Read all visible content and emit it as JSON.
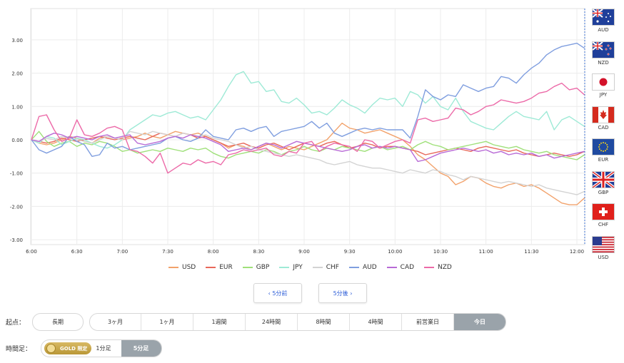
{
  "chart_data": {
    "type": "line",
    "x": [
      "6:00",
      "6:05",
      "6:10",
      "6:15",
      "6:20",
      "6:25",
      "6:30",
      "6:35",
      "6:40",
      "6:45",
      "6:50",
      "6:55",
      "7:00",
      "7:05",
      "7:10",
      "7:15",
      "7:20",
      "7:25",
      "7:30",
      "7:35",
      "7:40",
      "7:45",
      "7:50",
      "7:55",
      "8:00",
      "8:05",
      "8:10",
      "8:15",
      "8:20",
      "8:25",
      "8:30",
      "8:35",
      "8:40",
      "8:45",
      "8:50",
      "8:55",
      "9:00",
      "9:05",
      "9:10",
      "9:15",
      "9:20",
      "9:25",
      "9:30",
      "9:35",
      "9:40",
      "9:45",
      "9:50",
      "9:55",
      "10:00",
      "10:05",
      "10:10",
      "10:15",
      "10:20",
      "10:25",
      "10:30",
      "10:35",
      "10:40",
      "10:45",
      "10:50",
      "10:55",
      "11:00",
      "11:05",
      "11:10",
      "11:15",
      "11:20",
      "11:25",
      "11:30",
      "11:35",
      "11:40",
      "11:45",
      "11:50",
      "11:55",
      "12:00",
      "12:05"
    ],
    "xticks": [
      "6:00",
      "6:30",
      "7:00",
      "7:30",
      "8:00",
      "8:30",
      "9:00",
      "9:30",
      "10:00",
      "10:30",
      "11:00",
      "11:30",
      "12:00"
    ],
    "yticks": [
      "3.00",
      "2.00",
      "1.00",
      "0.00",
      "-1.00",
      "-2.00",
      "-3.00"
    ],
    "ylim": [
      -3,
      3.3
    ],
    "grid": true,
    "legend_position": "bottom",
    "series": [
      {
        "name": "USD",
        "color": "#f2a26b",
        "values": [
          0,
          -0.1,
          -0.15,
          -0.1,
          0,
          0.1,
          0.05,
          -0.05,
          -0.1,
          0.05,
          0.1,
          0.05,
          0,
          0.05,
          0.1,
          0.2,
          0.1,
          0.05,
          0.15,
          0.25,
          0.2,
          0.15,
          0.2,
          0.1,
          0,
          -0.1,
          -0.25,
          -0.15,
          -0.2,
          -0.3,
          -0.2,
          -0.1,
          -0.2,
          -0.3,
          -0.2,
          -0.25,
          -0.3,
          -0.2,
          -0.1,
          0,
          0.25,
          0.5,
          0.35,
          0.3,
          0.2,
          0.25,
          0.3,
          0.2,
          0.1,
          0,
          -0.2,
          -0.45,
          -0.6,
          -0.8,
          -1.0,
          -1.1,
          -1.35,
          -1.25,
          -1.1,
          -1.15,
          -1.3,
          -1.4,
          -1.45,
          -1.35,
          -1.3,
          -1.4,
          -1.35,
          -1.45,
          -1.6,
          -1.75,
          -1.9,
          -1.95,
          -1.95,
          -1.75
        ]
      },
      {
        "name": "EUR",
        "color": "#e8685a",
        "values": [
          0,
          -0.05,
          -0.1,
          -0.05,
          0.05,
          0,
          -0.05,
          0,
          0.05,
          0.1,
          0.05,
          0,
          0.05,
          0.1,
          0.05,
          0,
          0.1,
          0.2,
          0.15,
          0.1,
          0.2,
          0.15,
          0.05,
          0.1,
          0,
          -0.1,
          -0.2,
          -0.15,
          -0.1,
          -0.2,
          -0.25,
          -0.15,
          -0.1,
          -0.2,
          -0.3,
          -0.2,
          -0.1,
          -0.15,
          -0.2,
          -0.1,
          -0.05,
          -0.15,
          -0.25,
          -0.2,
          -0.1,
          -0.15,
          -0.25,
          -0.2,
          -0.2,
          -0.25,
          -0.3,
          -0.35,
          -0.45,
          -0.4,
          -0.35,
          -0.3,
          -0.25,
          -0.3,
          -0.35,
          -0.25,
          -0.2,
          -0.25,
          -0.3,
          -0.35,
          -0.3,
          -0.4,
          -0.45,
          -0.5,
          -0.45,
          -0.4,
          -0.45,
          -0.5,
          -0.45,
          -0.35
        ]
      },
      {
        "name": "GBP",
        "color": "#9fe07a",
        "values": [
          0,
          0.25,
          -0.05,
          -0.2,
          -0.1,
          -0.05,
          -0.2,
          -0.1,
          -0.15,
          -0.05,
          -0.1,
          -0.2,
          -0.35,
          -0.3,
          -0.4,
          -0.35,
          -0.3,
          -0.35,
          -0.25,
          -0.3,
          -0.35,
          -0.25,
          -0.3,
          -0.25,
          -0.4,
          -0.5,
          -0.55,
          -0.45,
          -0.4,
          -0.35,
          -0.4,
          -0.3,
          -0.35,
          -0.45,
          -0.35,
          -0.3,
          -0.2,
          -0.3,
          -0.35,
          -0.25,
          -0.3,
          -0.2,
          -0.25,
          -0.3,
          -0.35,
          -0.25,
          -0.2,
          -0.3,
          -0.25,
          -0.2,
          -0.3,
          -0.15,
          -0.05,
          -0.15,
          -0.2,
          -0.3,
          -0.25,
          -0.2,
          -0.15,
          -0.1,
          -0.05,
          -0.15,
          -0.2,
          -0.25,
          -0.2,
          -0.3,
          -0.35,
          -0.4,
          -0.35,
          -0.45,
          -0.5,
          -0.55,
          -0.6,
          -0.45
        ]
      },
      {
        "name": "JPY",
        "color": "#9eead6",
        "values": [
          0,
          -0.1,
          0.1,
          0.05,
          -0.15,
          -0.05,
          0.05,
          0,
          -0.1,
          -0.2,
          -0.25,
          -0.15,
          0,
          0.3,
          0.45,
          0.6,
          0.75,
          0.7,
          0.8,
          0.85,
          0.75,
          0.65,
          0.7,
          0.6,
          0.9,
          1.2,
          1.6,
          1.95,
          2.05,
          1.7,
          1.75,
          1.45,
          1.5,
          1.15,
          1.1,
          1.25,
          1.05,
          0.8,
          0.85,
          0.75,
          0.95,
          1.2,
          1.05,
          0.95,
          0.8,
          1.05,
          1.25,
          1.2,
          1.25,
          1.0,
          1.45,
          1.35,
          1.1,
          1.3,
          1.0,
          0.9,
          1.25,
          0.85,
          0.55,
          0.45,
          0.35,
          0.3,
          0.5,
          0.7,
          0.85,
          0.7,
          0.65,
          0.6,
          0.85,
          0.3,
          0.6,
          0.7,
          0.55,
          0.4
        ]
      },
      {
        "name": "CHF",
        "color": "#d3d3d3",
        "values": [
          0,
          -0.05,
          0.05,
          0,
          0.1,
          0.05,
          0,
          -0.05,
          -0.1,
          0,
          0.1,
          0.05,
          0,
          0.25,
          0.2,
          0.15,
          0.25,
          0.2,
          0.15,
          0.1,
          0.2,
          0.15,
          0.1,
          0.15,
          0.05,
          0,
          -0.05,
          -0.15,
          -0.25,
          -0.2,
          -0.3,
          -0.35,
          -0.4,
          -0.45,
          -0.5,
          -0.45,
          -0.5,
          -0.55,
          -0.6,
          -0.7,
          -0.75,
          -0.7,
          -0.65,
          -0.75,
          -0.8,
          -0.85,
          -0.85,
          -0.9,
          -0.95,
          -1.0,
          -0.9,
          -0.95,
          -1.0,
          -0.9,
          -0.95,
          -1.05,
          -1.1,
          -1.2,
          -1.1,
          -1.15,
          -1.2,
          -1.25,
          -1.3,
          -1.25,
          -1.3,
          -1.35,
          -1.4,
          -1.35,
          -1.45,
          -1.5,
          -1.55,
          -1.6,
          -1.65,
          -1.55
        ]
      },
      {
        "name": "AUD",
        "color": "#7f9edf",
        "values": [
          0,
          -0.3,
          -0.4,
          -0.3,
          -0.2,
          0.1,
          -0.05,
          -0.15,
          -0.5,
          -0.45,
          -0.1,
          -0.25,
          -0.2,
          -0.3,
          -0.25,
          -0.2,
          -0.15,
          -0.1,
          0.05,
          0.1,
          0.0,
          -0.05,
          0.05,
          0.3,
          0.1,
          0.05,
          0.0,
          0.3,
          0.35,
          0.25,
          0.35,
          0.4,
          0.1,
          0.25,
          0.3,
          0.35,
          0.4,
          0.55,
          0.35,
          0.5,
          0.2,
          0.1,
          0.2,
          0.3,
          0.35,
          0.3,
          0.35,
          0.3,
          0.3,
          0.3,
          0.05,
          0.7,
          1.5,
          1.3,
          1.2,
          1.35,
          1.3,
          1.65,
          1.55,
          1.45,
          1.55,
          1.6,
          1.9,
          1.85,
          1.7,
          1.95,
          2.15,
          2.3,
          2.55,
          2.7,
          2.8,
          2.85,
          2.9,
          2.75
        ]
      },
      {
        "name": "CAD",
        "color": "#b86ad6",
        "values": [
          0,
          -0.05,
          0.1,
          0.2,
          0.15,
          0.05,
          0.1,
          0.05,
          0,
          0.1,
          0.15,
          0.05,
          0.1,
          0.15,
          -0.1,
          -0.15,
          -0.1,
          -0.05,
          0.05,
          0.1,
          0.05,
          0.15,
          0.1,
          0.05,
          -0.05,
          -0.15,
          -0.35,
          -0.3,
          -0.25,
          -0.3,
          -0.2,
          -0.1,
          -0.15,
          -0.25,
          -0.15,
          -0.05,
          -0.1,
          -0.15,
          -0.2,
          -0.25,
          -0.3,
          -0.35,
          -0.3,
          -0.2,
          -0.15,
          -0.25,
          -0.2,
          -0.25,
          -0.2,
          -0.25,
          -0.3,
          -0.65,
          -0.6,
          -0.5,
          -0.4,
          -0.35,
          -0.3,
          -0.25,
          -0.3,
          -0.35,
          -0.3,
          -0.4,
          -0.35,
          -0.45,
          -0.4,
          -0.45,
          -0.4,
          -0.5,
          -0.45,
          -0.55,
          -0.5,
          -0.45,
          -0.4,
          -0.35
        ]
      },
      {
        "name": "NZD",
        "color": "#ec6aa8",
        "values": [
          0,
          0.7,
          0.75,
          0.3,
          -0.05,
          0.05,
          0.6,
          0.15,
          0.1,
          0.2,
          0.35,
          0.4,
          0.3,
          -0.3,
          -0.35,
          -0.5,
          -0.7,
          -0.4,
          -1.0,
          -0.85,
          -0.7,
          -0.75,
          -0.6,
          -0.7,
          -0.65,
          -0.75,
          -0.45,
          -0.4,
          -0.3,
          -0.35,
          -0.3,
          -0.25,
          -0.45,
          -0.5,
          -0.35,
          -0.4,
          -0.1,
          -0.05,
          -0.35,
          -0.2,
          -0.1,
          -0.15,
          -0.2,
          -0.35,
          0.0,
          -0.05,
          -0.25,
          -0.15,
          -0.05,
          0.0,
          -0.1,
          0.6,
          0.65,
          0.55,
          0.6,
          0.65,
          0.95,
          0.9,
          0.75,
          0.85,
          1.0,
          1.05,
          1.2,
          1.15,
          1.1,
          1.15,
          1.25,
          1.4,
          1.45,
          1.6,
          1.7,
          1.5,
          1.55,
          1.35
        ]
      }
    ]
  },
  "currencies": [
    {
      "code": "AUD",
      "flag": "au-flag-icon"
    },
    {
      "code": "NZD",
      "flag": "nz-flag-icon"
    },
    {
      "code": "JPY",
      "flag": "jp-flag-icon"
    },
    {
      "code": "CAD",
      "flag": "ca-flag-icon"
    },
    {
      "code": "EUR",
      "flag": "eu-flag-icon"
    },
    {
      "code": "GBP",
      "flag": "gb-flag-icon"
    },
    {
      "code": "CHF",
      "flag": "ch-flag-icon"
    },
    {
      "code": "USD",
      "flag": "us-flag-icon"
    }
  ],
  "nav": {
    "prev": "‹ 5分前",
    "next": "5分後 ›"
  },
  "start": {
    "label": "起点：",
    "long_term": "長期",
    "options": [
      "3ヶ月",
      "1ヶ月",
      "1週間",
      "24時間",
      "8時間",
      "4時間",
      "前営業日",
      "今日"
    ],
    "active": "今日"
  },
  "timeframe": {
    "label": "時間足：",
    "gold_text": "GOLD 限定",
    "one_min": "1分足",
    "five_min": "5分足",
    "active": "5分足"
  }
}
